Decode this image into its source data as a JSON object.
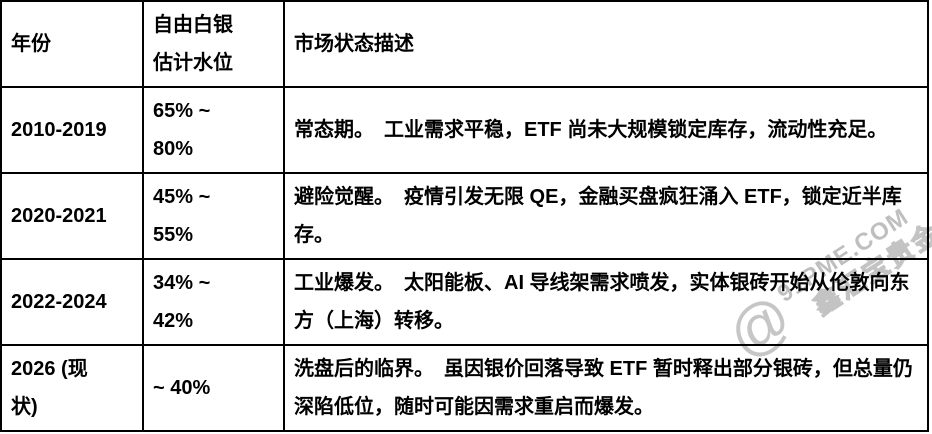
{
  "watermark": {
    "at_symbol": "@",
    "site": "91PME.COM",
    "brand": "鑫汇宝贵金"
  },
  "table": {
    "headers": {
      "year": "年份",
      "level": "自由白银\n估计水位",
      "desc": "市场状态描述"
    },
    "rows": [
      {
        "year": "2010-2019",
        "level": "65% ~\n80%",
        "desc": "常态期。　工业需求平稳，ETF 尚未大规模锁定库存，流动性充足。"
      },
      {
        "year": "2020-2021",
        "level": "45% ~\n55%",
        "desc": "避险觉醒。　疫情引发无限 QE，金融买盘疯狂涌入 ETF，锁定近半库存。"
      },
      {
        "year": "2022-2024",
        "level": "34% ~\n42%",
        "desc": "工业爆发。　太阳能板、AI 导线架需求喷发，实体银砖开始从伦敦向东方（上海）转移。"
      },
      {
        "year": "2026 (现\n状)",
        "level": "~ 40%",
        "desc": "洗盘后的临界。　虽因银价回落导致 ETF 暂时释出部分银砖，但总量仍深陷低位，随时可能因需求重启而爆发。"
      }
    ]
  },
  "colors": {
    "background": "#ffffff",
    "text": "#000000",
    "border": "#000000",
    "watermark_gray": "#c3c3c3"
  }
}
